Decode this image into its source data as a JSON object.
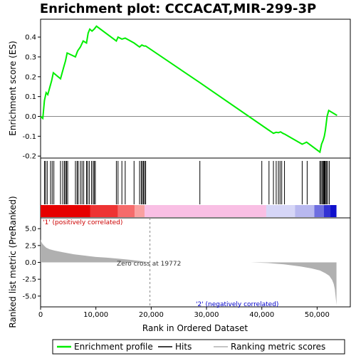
{
  "title": "Enrichment plot: CCCACAT,MIR-299-3P",
  "colors": {
    "es_line": "#00ee00",
    "hit": "#000000",
    "metric_fill": "#b0b0b0",
    "pos_label": "#cc0000",
    "neg_label": "#0000cc",
    "zero_line": "#888888"
  },
  "legend": {
    "items": [
      {
        "label": "Enrichment profile",
        "color": "#00ee00",
        "kind": "line"
      },
      {
        "label": "Hits",
        "color": "#000000",
        "kind": "line"
      },
      {
        "label": "Ranking metric scores",
        "color": "#b0b0b0",
        "kind": "line"
      }
    ]
  },
  "chart_data": [
    {
      "type": "line",
      "name": "enrichment-profile",
      "ylabel": "Enrichment score (ES)",
      "xlim": [
        0,
        56000
      ],
      "ylim": [
        -0.21,
        0.49
      ],
      "yticks": [
        -0.2,
        -0.1,
        0.0,
        0.1,
        0.2,
        0.3,
        0.4
      ],
      "ytick_labels": [
        "-0.2",
        "-0.1",
        "0.0",
        "0.1",
        "0.2",
        "0.3",
        "0.4"
      ],
      "x": [
        0,
        400,
        700,
        1000,
        1300,
        1700,
        2000,
        2300,
        3600,
        3900,
        4200,
        4500,
        4800,
        6300,
        6700,
        7200,
        7700,
        8300,
        8600,
        8900,
        9300,
        9700,
        10100,
        13700,
        14000,
        14700,
        15300,
        16900,
        17900,
        18300,
        18700,
        19000,
        28800,
        41300,
        42100,
        42600,
        43000,
        43400,
        43800,
        44200,
        47300,
        47700,
        48100,
        50500,
        50800,
        51100,
        51300,
        51500,
        51800,
        52100,
        53600
      ],
      "y": [
        0.0,
        -0.01,
        0.08,
        0.12,
        0.11,
        0.15,
        0.18,
        0.22,
        0.19,
        0.22,
        0.25,
        0.28,
        0.32,
        0.3,
        0.33,
        0.35,
        0.38,
        0.37,
        0.42,
        0.44,
        0.43,
        0.44,
        0.455,
        0.38,
        0.4,
        0.39,
        0.395,
        0.37,
        0.35,
        0.36,
        0.355,
        0.355,
        0.17,
        -0.07,
        -0.085,
        -0.08,
        -0.082,
        -0.078,
        -0.085,
        -0.09,
        -0.14,
        -0.135,
        -0.13,
        -0.18,
        -0.14,
        -0.12,
        -0.1,
        -0.07,
        0.0,
        0.03,
        0.005
      ]
    },
    {
      "type": "bar",
      "name": "hits",
      "x": [
        700,
        900,
        1200,
        1800,
        2100,
        2400,
        3600,
        4000,
        4300,
        4500,
        4700,
        4900,
        6300,
        6600,
        6800,
        7200,
        7500,
        7800,
        8300,
        8500,
        8800,
        9200,
        9500,
        9700,
        9900,
        13700,
        14000,
        14700,
        15300,
        16900,
        17900,
        18200,
        18400,
        18600,
        18800,
        19000,
        28800,
        40000,
        41300,
        42100,
        42600,
        43000,
        43300,
        43600,
        44100,
        47300,
        48200,
        50500,
        50700,
        50900,
        51100,
        51200,
        51300,
        51400,
        51500,
        51700,
        51900,
        52200
      ]
    },
    {
      "type": "area",
      "name": "ranking-metric-scores",
      "xlabel": "Rank in Ordered Dataset",
      "ylabel": "Ranked list metric (PreRanked)",
      "xlim": [
        0,
        56000
      ],
      "ylim": [
        -6.6,
        6.6
      ],
      "yticks": [
        -5.0,
        -2.5,
        0.0,
        2.5,
        5.0
      ],
      "ytick_labels": [
        "-5.0",
        "-2.5",
        "0.0",
        "2.5",
        "5.0"
      ],
      "xticks": [
        0,
        10000,
        20000,
        30000,
        40000,
        50000
      ],
      "xtick_labels": [
        "0",
        "10,000",
        "20,000",
        "30,000",
        "40,000",
        "50,000"
      ],
      "x": [
        0,
        100,
        300,
        600,
        1000,
        1600,
        2500,
        4000,
        6000,
        8000,
        10000,
        12000,
        14000,
        16000,
        18000,
        19772,
        26000,
        32000,
        38000,
        41000,
        44000,
        47000,
        49000,
        50500,
        51500,
        52200,
        52700,
        53000,
        53200,
        53400,
        53500
      ],
      "y": [
        3.4,
        3.1,
        2.8,
        2.5,
        2.2,
        1.95,
        1.75,
        1.5,
        1.2,
        1.0,
        0.8,
        0.7,
        0.55,
        0.4,
        0.2,
        0.0,
        0.0,
        0.0,
        0.0,
        -0.1,
        -0.3,
        -0.6,
        -0.9,
        -1.2,
        -1.6,
        -2.0,
        -2.6,
        -3.2,
        -4.0,
        -5.5,
        -6.3
      ],
      "annotations": {
        "positive": "'1' (positively correlated)",
        "negative": "'2' (negatively correlated)",
        "zero_cross": "Zero cross at 19772"
      },
      "zero_cross": 19772
    }
  ],
  "heatbar": {
    "total": 53500,
    "segments": [
      {
        "start": 0,
        "end": 9000,
        "color": "#e60000"
      },
      {
        "start": 9000,
        "end": 14000,
        "color": "#ee3333"
      },
      {
        "start": 14000,
        "end": 17000,
        "color": "#f56b6b"
      },
      {
        "start": 17000,
        "end": 18800,
        "color": "#f9a0a0"
      },
      {
        "start": 18800,
        "end": 40800,
        "color": "#f9bfe4"
      },
      {
        "start": 40800,
        "end": 46000,
        "color": "#d6d6f7"
      },
      {
        "start": 46000,
        "end": 49500,
        "color": "#b8b8ef"
      },
      {
        "start": 49500,
        "end": 51200,
        "color": "#6e6ee0"
      },
      {
        "start": 51200,
        "end": 52400,
        "color": "#3232d4"
      },
      {
        "start": 52400,
        "end": 53500,
        "color": "#1010cc"
      }
    ]
  }
}
